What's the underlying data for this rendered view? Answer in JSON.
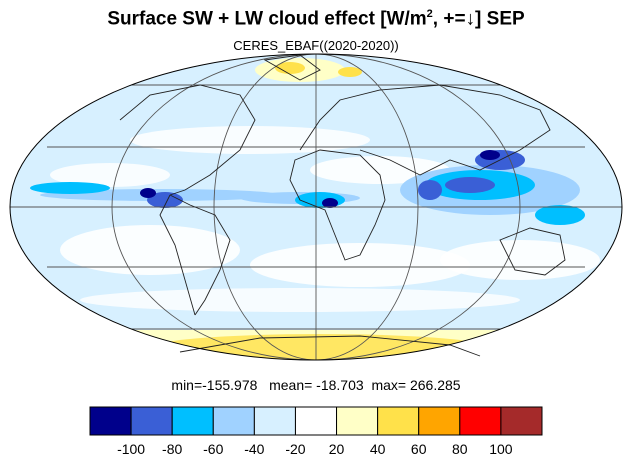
{
  "title": {
    "main": "Surface SW + LW cloud effect [W/m",
    "sup": "2",
    "rest": ", +=↓]  SEP"
  },
  "subtitle": "CERES_EBAF((2020-2020))",
  "stats": {
    "min": "min=-155.978",
    "mean": "mean= -18.703",
    "max": "max= 266.285"
  },
  "colorbar": {
    "colors": [
      "#00008b",
      "#3a5fd6",
      "#00bfff",
      "#a0d2ff",
      "#d7f0ff",
      "#ffffff",
      "#ffffc7",
      "#ffe14a",
      "#ffa500",
      "#ff0000",
      "#a52a2a"
    ],
    "ticks": [
      "-100",
      "-80",
      "-60",
      "-40",
      "-20",
      "20",
      "40",
      "60",
      "80",
      "100"
    ]
  },
  "map": {
    "projection": "Mollweide",
    "fill_color": "#d7f0ff",
    "grid": true
  }
}
